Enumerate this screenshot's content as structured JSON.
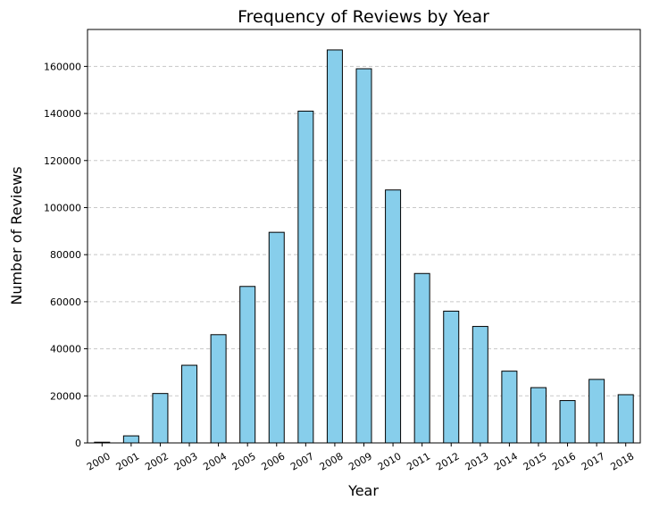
{
  "chart_data": {
    "type": "bar",
    "title": "Frequency of Reviews by Year",
    "xlabel": "Year",
    "ylabel": "Number of Reviews",
    "categories": [
      "2000",
      "2001",
      "2002",
      "2003",
      "2004",
      "2005",
      "2006",
      "2007",
      "2008",
      "2009",
      "2010",
      "2011",
      "2012",
      "2013",
      "2014",
      "2015",
      "2016",
      "2017",
      "2018"
    ],
    "values": [
      300,
      3000,
      21000,
      33000,
      46000,
      66500,
      89500,
      141000,
      167000,
      159000,
      107500,
      72000,
      56000,
      49500,
      30500,
      23500,
      18000,
      27000,
      20500
    ],
    "ylim": [
      0,
      175700
    ],
    "yticks": [
      0,
      20000,
      40000,
      60000,
      80000,
      100000,
      120000,
      140000,
      160000
    ],
    "ytick_labels": [
      "0",
      "20000",
      "40000",
      "60000",
      "80000",
      "100000",
      "120000",
      "140000",
      "160000"
    ],
    "grid": "y-dashed",
    "legend": "none",
    "xtick_rotation_deg": 30,
    "colors": {
      "bar_fill": "#87ceeb",
      "bar_edge": "#000000",
      "grid": "#c8c8c8"
    }
  }
}
